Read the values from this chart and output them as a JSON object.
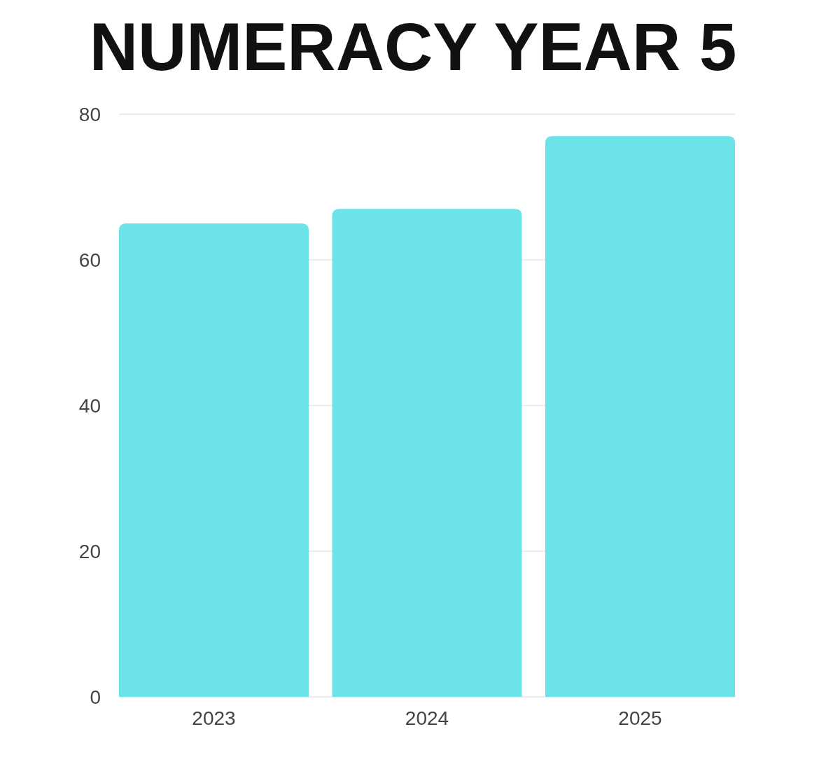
{
  "chart_data": {
    "type": "bar",
    "title": "NUMERACY YEAR 5",
    "categories": [
      "2023",
      "2024",
      "2025"
    ],
    "values": [
      65,
      67,
      77
    ],
    "color": "#6ce3e8",
    "ylim": [
      0,
      80
    ],
    "yticks": [
      0,
      20,
      40,
      60,
      80
    ],
    "grid": true
  }
}
